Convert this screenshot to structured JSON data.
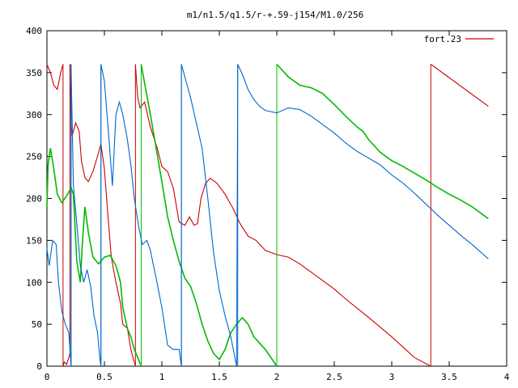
{
  "chart_data": {
    "type": "line",
    "title": "m1/n1.5/q1.5/r-+.59-j154/M1.0/256",
    "xlabel": "",
    "ylabel": "",
    "xlim": [
      0,
      4
    ],
    "ylim": [
      0,
      400
    ],
    "xticks": [
      0,
      0.5,
      1,
      1.5,
      2,
      2.5,
      3,
      3.5,
      4
    ],
    "xtick_labels": [
      "0",
      "0.5",
      "1",
      "1.5",
      "2",
      "2.5",
      "3",
      "3.5",
      "4"
    ],
    "yticks": [
      0,
      50,
      100,
      150,
      200,
      250,
      300,
      350,
      400
    ],
    "ytick_labels": [
      "0",
      "50",
      "100",
      "150",
      "200",
      "250",
      "300",
      "350",
      "400"
    ],
    "grid": false,
    "legend": {
      "position": "top-right",
      "entries": [
        "fort.23"
      ]
    },
    "colors": {
      "red": "#cc0000",
      "green": "#00bb00",
      "blue": "#0066cc",
      "axis": "#000000"
    },
    "series": [
      {
        "name": "fort.23",
        "color": "#cc0000",
        "segments": [
          [
            [
              0,
              360
            ],
            [
              0.03,
              350
            ],
            [
              0.06,
              335
            ],
            [
              0.09,
              330
            ],
            [
              0.12,
              350
            ],
            [
              0.14,
              360
            ]
          ],
          [
            [
              0.14,
              0
            ],
            [
              0.15,
              5
            ],
            [
              0.17,
              2
            ],
            [
              0.19,
              10
            ],
            [
              0.2,
              15
            ]
          ],
          [
            [
              0.2,
              360
            ],
            [
              0.21,
              290
            ],
            [
              0.22,
              275
            ],
            [
              0.25,
              290
            ],
            [
              0.28,
              280
            ],
            [
              0.3,
              245
            ],
            [
              0.33,
              225
            ],
            [
              0.36,
              220
            ],
            [
              0.4,
              232
            ],
            [
              0.45,
              255
            ],
            [
              0.47,
              265
            ],
            [
              0.5,
              235
            ],
            [
              0.53,
              180
            ],
            [
              0.56,
              130
            ],
            [
              0.6,
              100
            ],
            [
              0.64,
              75
            ],
            [
              0.66,
              50
            ],
            [
              0.7,
              45
            ],
            [
              0.73,
              20
            ],
            [
              0.76,
              5
            ],
            [
              0.77,
              0
            ]
          ],
          [
            [
              0.77,
              360
            ],
            [
              0.79,
              320
            ],
            [
              0.81,
              308
            ],
            [
              0.85,
              315
            ],
            [
              0.9,
              285
            ],
            [
              0.96,
              260
            ],
            [
              1.0,
              238
            ],
            [
              1.05,
              232
            ],
            [
              1.1,
              212
            ],
            [
              1.15,
              172
            ],
            [
              1.2,
              168
            ],
            [
              1.24,
              178
            ],
            [
              1.28,
              168
            ],
            [
              1.31,
              170
            ],
            [
              1.34,
              200
            ],
            [
              1.38,
              218
            ],
            [
              1.42,
              224
            ],
            [
              1.48,
              218
            ],
            [
              1.55,
              205
            ],
            [
              1.62,
              188
            ],
            [
              1.68,
              170
            ],
            [
              1.75,
              155
            ],
            [
              1.82,
              150
            ],
            [
              1.9,
              138
            ],
            [
              2.0,
              133
            ],
            [
              2.1,
              130
            ],
            [
              2.2,
              122
            ],
            [
              2.3,
              112
            ],
            [
              2.4,
              102
            ],
            [
              2.5,
              92
            ],
            [
              2.6,
              80
            ],
            [
              2.8,
              58
            ],
            [
              3.0,
              35
            ],
            [
              3.2,
              10
            ],
            [
              3.34,
              0
            ]
          ],
          [
            [
              3.34,
              360
            ],
            [
              3.84,
              310
            ]
          ]
        ]
      },
      {
        "name": "",
        "color": "#00bb00",
        "segments": [
          [
            [
              0,
              190
            ],
            [
              0.01,
              240
            ],
            [
              0.03,
              260
            ],
            [
              0.06,
              235
            ],
            [
              0.09,
              205
            ],
            [
              0.13,
              195
            ],
            [
              0.18,
              205
            ],
            [
              0.21,
              213
            ],
            [
              0.23,
              205
            ],
            [
              0.26,
              125
            ],
            [
              0.29,
              100
            ],
            [
              0.31,
              150
            ],
            [
              0.33,
              190
            ],
            [
              0.36,
              160
            ],
            [
              0.4,
              130
            ],
            [
              0.45,
              122
            ],
            [
              0.5,
              130
            ],
            [
              0.55,
              132
            ],
            [
              0.6,
              120
            ],
            [
              0.64,
              100
            ],
            [
              0.66,
              70
            ],
            [
              0.7,
              45
            ],
            [
              0.73,
              35
            ],
            [
              0.76,
              20
            ],
            [
              0.79,
              10
            ],
            [
              0.82,
              0
            ]
          ],
          [
            [
              0.82,
              360
            ],
            [
              0.86,
              330
            ],
            [
              0.9,
              300
            ],
            [
              0.95,
              260
            ],
            [
              1.0,
              220
            ],
            [
              1.05,
              178
            ],
            [
              1.1,
              150
            ],
            [
              1.15,
              125
            ],
            [
              1.2,
              105
            ],
            [
              1.25,
              95
            ],
            [
              1.3,
              75
            ],
            [
              1.35,
              50
            ],
            [
              1.4,
              30
            ],
            [
              1.45,
              15
            ],
            [
              1.5,
              8
            ],
            [
              1.55,
              20
            ],
            [
              1.6,
              40
            ],
            [
              1.65,
              50
            ],
            [
              1.7,
              58
            ],
            [
              1.75,
              50
            ],
            [
              1.8,
              35
            ],
            [
              1.9,
              20
            ],
            [
              2.0,
              0
            ]
          ],
          [
            [
              2.0,
              360
            ],
            [
              2.1,
              345
            ],
            [
              2.2,
              335
            ],
            [
              2.3,
              332
            ],
            [
              2.4,
              325
            ],
            [
              2.5,
              312
            ],
            [
              2.6,
              298
            ],
            [
              2.7,
              285
            ],
            [
              2.75,
              280
            ],
            [
              2.8,
              270
            ],
            [
              2.9,
              255
            ],
            [
              3.0,
              245
            ],
            [
              3.1,
              238
            ],
            [
              3.2,
              230
            ],
            [
              3.3,
              222
            ],
            [
              3.4,
              213
            ],
            [
              3.5,
              205
            ],
            [
              3.6,
              198
            ],
            [
              3.7,
              190
            ],
            [
              3.8,
              180
            ],
            [
              3.84,
              176
            ]
          ]
        ]
      },
      {
        "name": "",
        "color": "#0066cc",
        "segments": [
          [
            [
              0,
              140
            ],
            [
              0.02,
              120
            ],
            [
              0.05,
              150
            ],
            [
              0.08,
              145
            ],
            [
              0.1,
              100
            ],
            [
              0.13,
              65
            ],
            [
              0.16,
              50
            ],
            [
              0.19,
              40
            ],
            [
              0.21,
              0
            ]
          ],
          [
            [
              0.21,
              360
            ],
            [
              0.23,
              215
            ],
            [
              0.26,
              170
            ],
            [
              0.29,
              120
            ],
            [
              0.32,
              100
            ],
            [
              0.35,
              115
            ],
            [
              0.38,
              95
            ],
            [
              0.41,
              60
            ],
            [
              0.44,
              40
            ],
            [
              0.46,
              10
            ],
            [
              0.47,
              0
            ]
          ],
          [
            [
              0.47,
              360
            ],
            [
              0.5,
              340
            ],
            [
              0.54,
              270
            ],
            [
              0.57,
              215
            ],
            [
              0.6,
              300
            ],
            [
              0.63,
              315
            ],
            [
              0.66,
              300
            ],
            [
              0.7,
              270
            ],
            [
              0.73,
              240
            ],
            [
              0.76,
              200
            ],
            [
              0.8,
              165
            ],
            [
              0.83,
              145
            ],
            [
              0.87,
              150
            ],
            [
              0.9,
              138
            ],
            [
              0.95,
              105
            ],
            [
              1.0,
              70
            ],
            [
              1.05,
              25
            ],
            [
              1.1,
              20
            ],
            [
              1.15,
              20
            ],
            [
              1.17,
              0
            ]
          ],
          [
            [
              1.17,
              360
            ],
            [
              1.2,
              345
            ],
            [
              1.25,
              320
            ],
            [
              1.3,
              290
            ],
            [
              1.35,
              260
            ],
            [
              1.4,
              200
            ],
            [
              1.45,
              135
            ],
            [
              1.5,
              90
            ],
            [
              1.55,
              60
            ],
            [
              1.6,
              35
            ],
            [
              1.65,
              0
            ]
          ],
          [
            [
              1.66,
              360
            ],
            [
              1.7,
              348
            ],
            [
              1.75,
              330
            ],
            [
              1.8,
              318
            ],
            [
              1.85,
              310
            ],
            [
              1.9,
              305
            ],
            [
              2.0,
              302
            ],
            [
              2.1,
              308
            ],
            [
              2.2,
              306
            ],
            [
              2.3,
              298
            ],
            [
              2.4,
              288
            ],
            [
              2.5,
              278
            ],
            [
              2.6,
              266
            ],
            [
              2.7,
              256
            ],
            [
              2.8,
              248
            ],
            [
              2.9,
              240
            ],
            [
              3.0,
              228
            ],
            [
              3.1,
              218
            ],
            [
              3.2,
              206
            ],
            [
              3.3,
              193
            ],
            [
              3.4,
              180
            ],
            [
              3.5,
              168
            ],
            [
              3.6,
              156
            ],
            [
              3.7,
              145
            ],
            [
              3.84,
              128
            ]
          ]
        ]
      },
      {
        "name": "",
        "color": "#0066cc",
        "segments": [],
        "vertical_lines_x": [
          0.21,
          0.47,
          1.17,
          1.66
        ]
      }
    ]
  }
}
